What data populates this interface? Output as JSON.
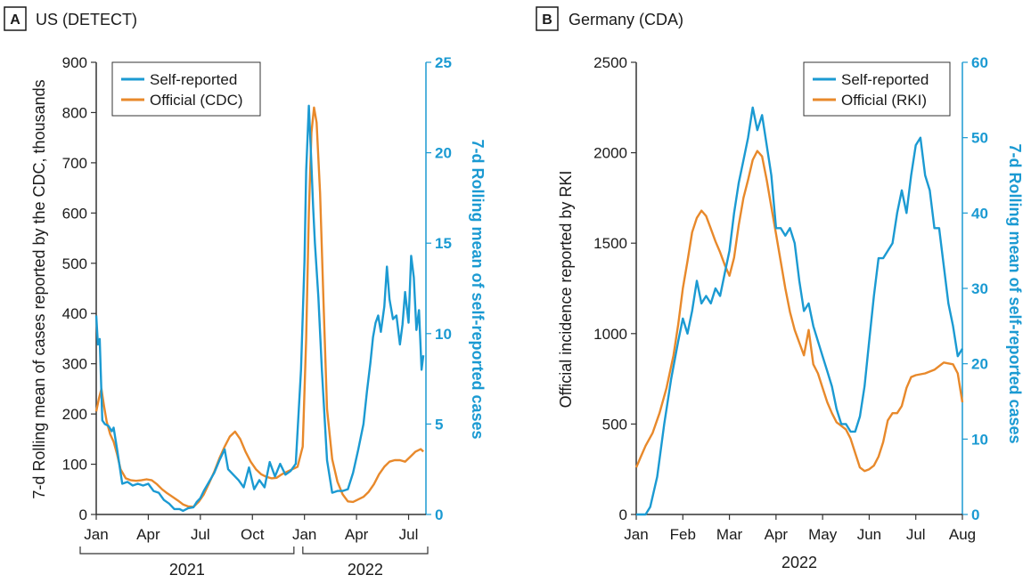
{
  "colors": {
    "self_reported": "#1b9ad2",
    "official": "#e8892b",
    "axis": "#333333"
  },
  "chart_data": [
    {
      "type": "line",
      "panel_letter": "A",
      "title": "US (DETECT)",
      "ylabel": "7-d Rolling mean of cases reported by the CDC, thousands",
      "ylabel_right": "7-d Rolling mean of self-reported cases",
      "ylim": [
        0,
        900
      ],
      "ylim_right": [
        0,
        25
      ],
      "yticks": [
        0,
        100,
        200,
        300,
        400,
        500,
        600,
        700,
        800,
        900
      ],
      "yticks_right": [
        0,
        5,
        10,
        15,
        20,
        25
      ],
      "xlim": [
        0,
        19
      ],
      "xticks": [
        {
          "label": "Jan",
          "x": 0
        },
        {
          "label": "Apr",
          "x": 3
        },
        {
          "label": "Jul",
          "x": 6
        },
        {
          "label": "Oct",
          "x": 9
        },
        {
          "label": "Jan",
          "x": 12
        },
        {
          "label": "Apr",
          "x": 15
        },
        {
          "label": "Jul",
          "x": 18
        }
      ],
      "year_groups": [
        {
          "label": "2021",
          "start": 0,
          "end": 11.7
        },
        {
          "label": "2022",
          "start": 11.7,
          "end": 19
        }
      ],
      "legend": [
        "Self-reported",
        "Official (CDC)"
      ],
      "series": [
        {
          "name": "Self-reported",
          "axis": "right",
          "x": [
            0,
            0.1,
            0.2,
            0.35,
            0.5,
            0.7,
            0.9,
            1.0,
            1.2,
            1.5,
            1.8,
            2.1,
            2.4,
            2.7,
            3.0,
            3.3,
            3.6,
            3.9,
            4.2,
            4.5,
            4.8,
            5.0,
            5.3,
            5.6,
            5.8,
            6.0,
            6.2,
            6.5,
            6.8,
            7.1,
            7.4,
            7.6,
            7.9,
            8.2,
            8.5,
            8.8,
            9.1,
            9.4,
            9.7,
            10.0,
            10.3,
            10.6,
            10.9,
            11.2,
            11.5,
            11.8,
            12.0,
            12.1,
            12.25,
            12.35,
            12.5,
            12.6,
            12.8,
            13.0,
            13.3,
            13.6,
            13.9,
            14.2,
            14.5,
            14.8,
            15.1,
            15.4,
            15.6,
            15.8,
            15.95,
            16.1,
            16.25,
            16.4,
            16.6,
            16.75,
            16.9,
            17.1,
            17.3,
            17.5,
            17.65,
            17.8,
            18.0,
            18.15,
            18.3,
            18.45,
            18.6,
            18.75,
            18.85
          ],
          "values": [
            11.0,
            9.4,
            9.7,
            5.2,
            5.0,
            4.9,
            4.6,
            4.8,
            3.6,
            1.7,
            1.8,
            1.6,
            1.7,
            1.6,
            1.7,
            1.3,
            1.2,
            0.8,
            0.6,
            0.3,
            0.3,
            0.2,
            0.35,
            0.4,
            0.7,
            0.9,
            1.3,
            1.8,
            2.3,
            3.0,
            3.6,
            2.5,
            2.2,
            1.9,
            1.5,
            2.6,
            1.4,
            1.9,
            1.5,
            2.9,
            2.1,
            2.8,
            2.2,
            2.4,
            2.8,
            8.0,
            14.0,
            19.0,
            22.6,
            20.5,
            17.0,
            15.0,
            12.0,
            8.0,
            3.0,
            1.2,
            1.3,
            1.3,
            1.4,
            2.3,
            3.6,
            5.0,
            6.8,
            8.4,
            9.8,
            10.6,
            11.0,
            10.1,
            11.5,
            13.7,
            11.9,
            10.8,
            11.0,
            9.4,
            10.5,
            12.3,
            10.6,
            14.3,
            13.1,
            10.2,
            11.3,
            8.0,
            8.8
          ]
        },
        {
          "name": "Official (CDC)",
          "axis": "left",
          "x": [
            0,
            0.15,
            0.3,
            0.45,
            0.6,
            0.8,
            1.0,
            1.2,
            1.4,
            1.7,
            2.0,
            2.3,
            2.6,
            2.9,
            3.2,
            3.5,
            3.8,
            4.1,
            4.4,
            4.7,
            5.0,
            5.3,
            5.6,
            5.9,
            6.2,
            6.5,
            6.8,
            7.1,
            7.4,
            7.7,
            8.0,
            8.3,
            8.6,
            8.9,
            9.2,
            9.5,
            9.8,
            10.1,
            10.4,
            10.7,
            11.0,
            11.3,
            11.6,
            11.9,
            12.1,
            12.25,
            12.4,
            12.55,
            12.7,
            12.9,
            13.1,
            13.3,
            13.6,
            13.9,
            14.2,
            14.5,
            14.8,
            15.1,
            15.4,
            15.7,
            16.0,
            16.3,
            16.6,
            16.9,
            17.2,
            17.5,
            17.8,
            18.1,
            18.4,
            18.7,
            18.85
          ],
          "values": [
            205,
            230,
            250,
            215,
            185,
            160,
            145,
            120,
            90,
            72,
            68,
            67,
            68,
            70,
            68,
            60,
            50,
            42,
            35,
            28,
            20,
            16,
            15,
            25,
            40,
            62,
            85,
            112,
            135,
            155,
            165,
            150,
            125,
            105,
            90,
            80,
            75,
            72,
            73,
            80,
            85,
            90,
            95,
            135,
            350,
            600,
            760,
            810,
            780,
            640,
            420,
            210,
            110,
            65,
            40,
            26,
            25,
            30,
            35,
            45,
            60,
            80,
            95,
            105,
            108,
            108,
            105,
            115,
            125,
            130,
            125
          ]
        }
      ]
    },
    {
      "type": "line",
      "panel_letter": "B",
      "title": "Germany (CDA)",
      "ylabel": "Official incidence reported by RKI",
      "ylabel_right": "7-d Rolling mean of self-reported cases",
      "ylim": [
        0,
        2500
      ],
      "ylim_right": [
        0,
        60
      ],
      "yticks": [
        0,
        500,
        1000,
        1500,
        2000,
        2500
      ],
      "yticks_right": [
        0,
        10,
        20,
        30,
        40,
        50,
        60
      ],
      "xlim": [
        0,
        7
      ],
      "xticks": [
        {
          "label": "Jan",
          "x": 0
        },
        {
          "label": "Feb",
          "x": 1
        },
        {
          "label": "Mar",
          "x": 2
        },
        {
          "label": "Apr",
          "x": 3
        },
        {
          "label": "May",
          "x": 4
        },
        {
          "label": "Jun",
          "x": 5
        },
        {
          "label": "Jul",
          "x": 6
        },
        {
          "label": "Aug",
          "x": 7
        }
      ],
      "year_label": "2022",
      "legend": [
        "Self-reported",
        "Official (RKI)"
      ],
      "series": [
        {
          "name": "Self-reported",
          "axis": "right",
          "x": [
            0,
            0.1,
            0.2,
            0.3,
            0.45,
            0.6,
            0.75,
            0.9,
            1.0,
            1.1,
            1.2,
            1.3,
            1.4,
            1.5,
            1.6,
            1.7,
            1.8,
            1.9,
            2.0,
            2.1,
            2.2,
            2.3,
            2.4,
            2.5,
            2.6,
            2.7,
            2.8,
            2.9,
            3.0,
            3.1,
            3.2,
            3.3,
            3.4,
            3.5,
            3.6,
            3.7,
            3.8,
            3.9,
            4.0,
            4.1,
            4.2,
            4.3,
            4.4,
            4.5,
            4.6,
            4.7,
            4.8,
            4.9,
            5.0,
            5.1,
            5.2,
            5.3,
            5.4,
            5.5,
            5.6,
            5.7,
            5.8,
            5.9,
            6.0,
            6.1,
            6.2,
            6.3,
            6.4,
            6.5,
            6.6,
            6.7,
            6.8,
            6.9,
            7.0
          ],
          "values": [
            0,
            0,
            0,
            1,
            5,
            12,
            18,
            23,
            26,
            24,
            27,
            31,
            28,
            29,
            28,
            30,
            29,
            32,
            35,
            40,
            44,
            47,
            50,
            54,
            51,
            53,
            49,
            45,
            38,
            38,
            37,
            38,
            36,
            31,
            27,
            28,
            25,
            23,
            21,
            19,
            17,
            14,
            12,
            12,
            11,
            11,
            13,
            17,
            23,
            29,
            34,
            34,
            35,
            36,
            40,
            43,
            40,
            45,
            49,
            50,
            45,
            43,
            38,
            38,
            33,
            28,
            25,
            21,
            22
          ]
        },
        {
          "name": "Official (RKI)",
          "axis": "left",
          "x": [
            0,
            0.1,
            0.2,
            0.35,
            0.5,
            0.65,
            0.8,
            0.9,
            1.0,
            1.1,
            1.2,
            1.3,
            1.4,
            1.5,
            1.6,
            1.7,
            1.8,
            1.9,
            2.0,
            2.1,
            2.2,
            2.3,
            2.4,
            2.5,
            2.6,
            2.7,
            2.8,
            2.9,
            3.0,
            3.1,
            3.2,
            3.3,
            3.4,
            3.5,
            3.6,
            3.7,
            3.8,
            3.9,
            4.0,
            4.1,
            4.2,
            4.3,
            4.4,
            4.5,
            4.6,
            4.7,
            4.8,
            4.9,
            5.0,
            5.1,
            5.2,
            5.3,
            5.4,
            5.5,
            5.6,
            5.7,
            5.8,
            5.9,
            6.0,
            6.2,
            6.4,
            6.6,
            6.8,
            6.9,
            7.0
          ],
          "values": [
            260,
            320,
            380,
            450,
            560,
            700,
            880,
            1050,
            1250,
            1400,
            1560,
            1640,
            1680,
            1650,
            1580,
            1510,
            1450,
            1380,
            1320,
            1420,
            1600,
            1750,
            1850,
            1960,
            2010,
            1980,
            1850,
            1700,
            1550,
            1400,
            1250,
            1120,
            1020,
            950,
            880,
            1020,
            830,
            780,
            700,
            620,
            560,
            510,
            490,
            470,
            420,
            340,
            260,
            240,
            250,
            270,
            320,
            400,
            520,
            560,
            560,
            600,
            700,
            760,
            770,
            780,
            800,
            840,
            830,
            780,
            620
          ]
        }
      ]
    }
  ]
}
